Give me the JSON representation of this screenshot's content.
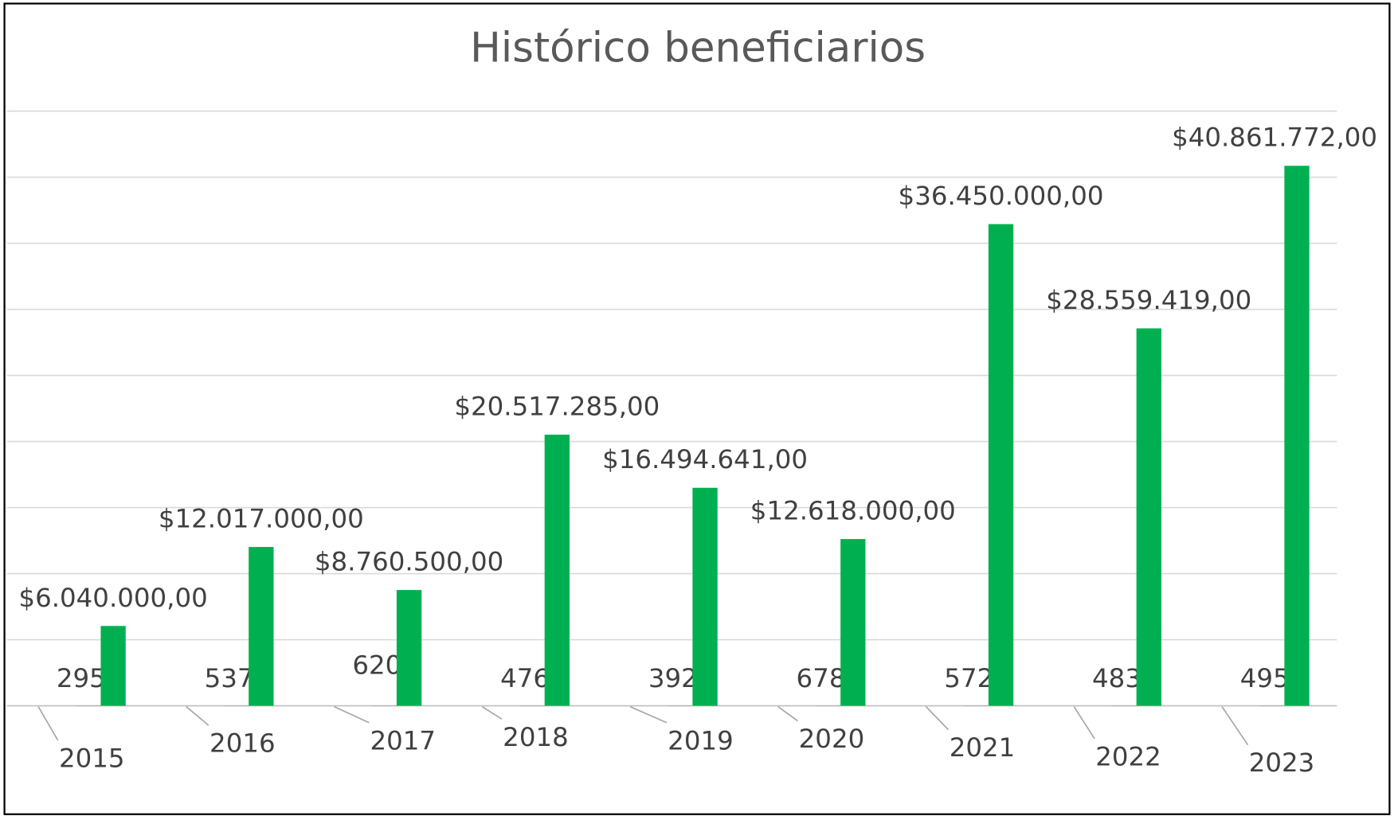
{
  "chart_data": {
    "type": "bar",
    "title": "Histórico beneficiarios",
    "categories": [
      "2015",
      "2016",
      "2017",
      "2018",
      "2019",
      "2020",
      "2021",
      "2022",
      "2023"
    ],
    "series": [
      {
        "color": "#a5a5a5",
        "values": [
          295,
          537,
          620,
          476,
          392,
          678,
          572,
          483,
          495
        ]
      },
      {
        "color": "#00b050",
        "values": [
          6040000,
          12017000,
          8760500,
          20517285,
          16494641,
          12618000,
          36450000,
          28559419,
          40861772
        ],
        "value_labels": [
          "$6.040.000,00",
          "$12.017.000,00",
          "$8.760.500,00",
          "$20.517.285,00",
          "$16.494.641,00",
          "$12.618.000,00",
          "$36.450.000,00",
          "$28.559.419,00",
          "$40.861.772,00"
        ]
      }
    ],
    "ylim": [
      0,
      45000000
    ],
    "yticks": [
      0,
      5000000,
      10000000,
      15000000,
      20000000,
      25000000,
      30000000,
      35000000,
      40000000,
      45000000
    ],
    "grid": true
  }
}
